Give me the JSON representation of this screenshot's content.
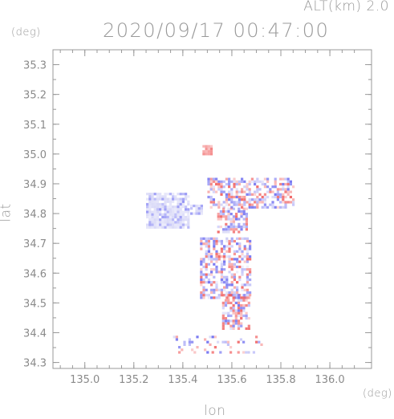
{
  "header": {
    "altitude_label": "ALT(km) 2.0",
    "datetime": "2020/09/17 00:47:00"
  },
  "colors": {
    "frame": "#999999",
    "positive": "#f05a5a",
    "negative": "#6a6af0",
    "neutral": "#c8c8f4"
  },
  "chart_data": {
    "type": "heatmap",
    "title": "2020/09/17 00:47:00",
    "subtitle": "ALT(km) 2.0",
    "xlabel": "lon",
    "ylabel": "lat",
    "x_unit": "(deg)",
    "y_unit": "(deg)",
    "xlim": [
      134.87,
      136.17
    ],
    "ylim": [
      34.28,
      35.35
    ],
    "xticks": [
      "135.0",
      "135.2",
      "135.4",
      "135.6",
      "135.8",
      "136.0"
    ],
    "yticks": [
      "34.3",
      "34.4",
      "34.5",
      "34.6",
      "34.7",
      "34.8",
      "34.9",
      "35.0",
      "35.1",
      "35.2",
      "35.3"
    ],
    "grid": false,
    "regions": [
      {
        "lon": [
          135.25,
          135.42
        ],
        "lat": [
          34.75,
          34.87
        ],
        "tone": "neutral"
      },
      {
        "lon": [
          135.43,
          135.48
        ],
        "lat": [
          34.8,
          34.83
        ],
        "tone": "neutral"
      },
      {
        "lon": [
          135.48,
          135.52
        ],
        "lat": [
          35.0,
          35.03
        ],
        "tone": "positive"
      },
      {
        "lon": [
          135.5,
          135.85
        ],
        "lat": [
          34.82,
          34.92
        ],
        "tone": "mixed"
      },
      {
        "lon": [
          135.54,
          135.66
        ],
        "lat": [
          34.74,
          34.82
        ],
        "tone": "mixed"
      },
      {
        "lon": [
          135.47,
          135.67
        ],
        "lat": [
          34.52,
          34.72
        ],
        "tone": "mixed"
      },
      {
        "lon": [
          135.56,
          135.67
        ],
        "lat": [
          34.41,
          34.53
        ],
        "tone": "mixed"
      },
      {
        "lon": [
          135.36,
          135.72
        ],
        "lat": [
          34.33,
          34.39
        ],
        "tone": "sparse"
      }
    ]
  }
}
